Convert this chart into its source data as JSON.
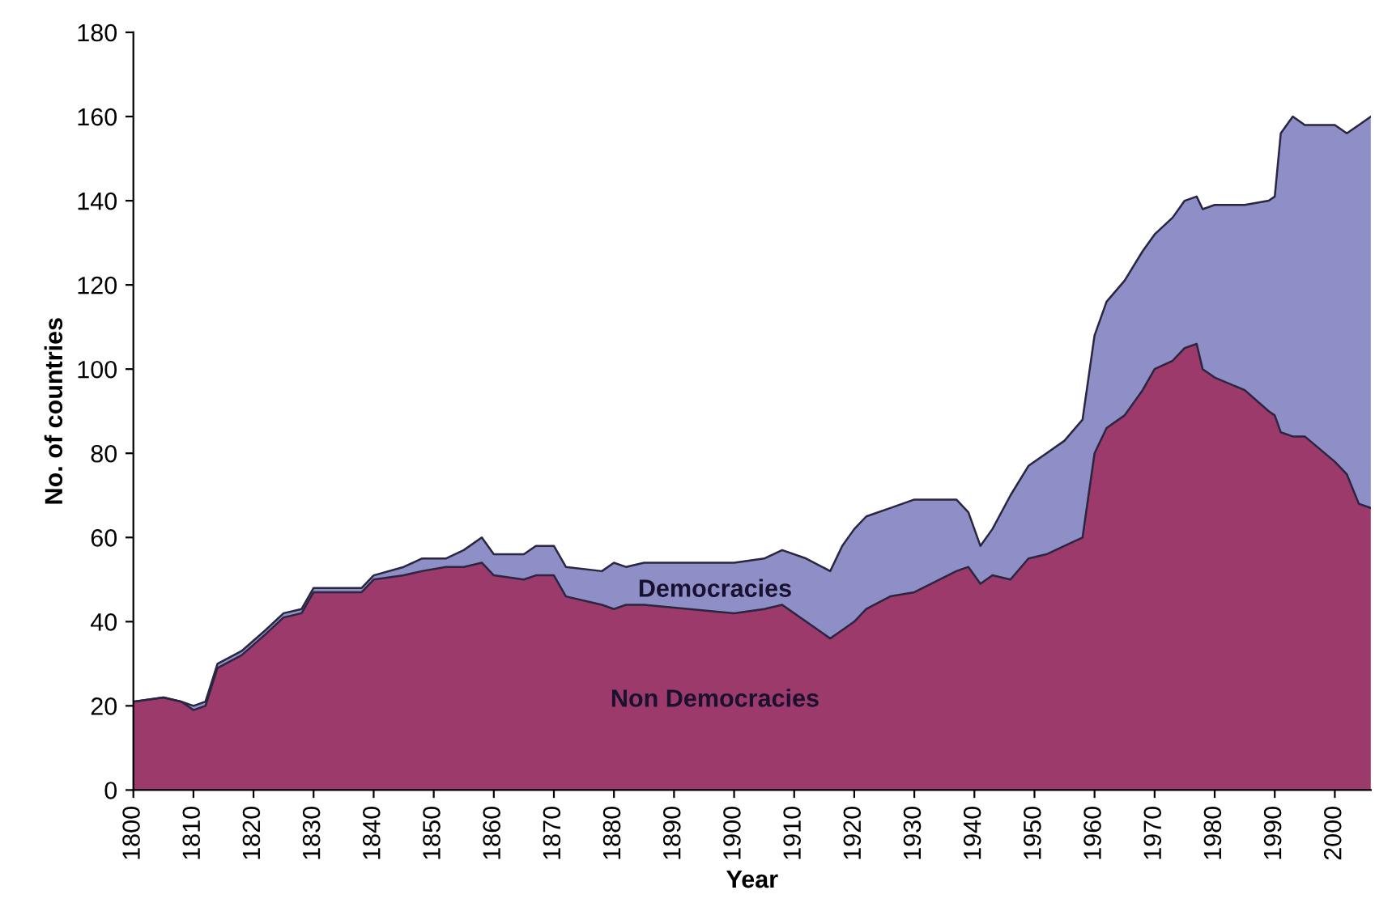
{
  "chart_data": {
    "type": "area",
    "stacked": true,
    "xlabel": "Year",
    "ylabel": "No. of countries",
    "x": [
      1800,
      1805,
      1808,
      1810,
      1812,
      1814,
      1818,
      1822,
      1825,
      1828,
      1830,
      1835,
      1838,
      1840,
      1845,
      1848,
      1852,
      1855,
      1858,
      1860,
      1865,
      1867,
      1870,
      1872,
      1878,
      1880,
      1882,
      1885,
      1900,
      1905,
      1908,
      1912,
      1916,
      1918,
      1920,
      1922,
      1926,
      1930,
      1937,
      1939,
      1941,
      1943,
      1946,
      1949,
      1952,
      1955,
      1958,
      1960,
      1962,
      1965,
      1968,
      1970,
      1973,
      1975,
      1977,
      1978,
      1980,
      1985,
      1989,
      1990,
      1991,
      1993,
      1995,
      2000,
      2002,
      2004,
      2006
    ],
    "series": [
      {
        "name": "Non Democracies",
        "color": "#9b3a6b",
        "values": [
          21,
          22,
          21,
          19,
          20,
          29,
          32,
          37,
          41,
          42,
          47,
          47,
          47,
          50,
          51,
          52,
          53,
          53,
          54,
          51,
          50,
          51,
          51,
          46,
          44,
          43,
          44,
          44,
          42,
          43,
          44,
          40,
          36,
          38,
          40,
          43,
          46,
          47,
          52,
          53,
          49,
          51,
          50,
          55,
          56,
          58,
          60,
          80,
          86,
          89,
          95,
          100,
          102,
          105,
          106,
          100,
          98,
          95,
          90,
          89,
          85,
          84,
          84,
          78,
          75,
          68,
          67
        ]
      },
      {
        "name": "Democracies",
        "color": "#8d8fc6",
        "values": [
          0,
          0,
          0,
          1,
          1,
          1,
          1,
          1,
          1,
          1,
          1,
          1,
          1,
          1,
          2,
          3,
          2,
          4,
          6,
          5,
          6,
          7,
          7,
          7,
          8,
          11,
          9,
          10,
          12,
          12,
          13,
          15,
          16,
          20,
          22,
          22,
          21,
          22,
          17,
          13,
          9,
          11,
          20,
          22,
          24,
          25,
          28,
          28,
          30,
          32,
          33,
          32,
          34,
          35,
          35,
          38,
          41,
          44,
          50,
          52,
          71,
          76,
          74,
          80,
          81,
          90,
          93
        ]
      }
    ],
    "xlim": [
      1800,
      2006
    ],
    "xticks": [
      1800,
      1810,
      1820,
      1830,
      1840,
      1850,
      1860,
      1870,
      1880,
      1890,
      1900,
      1910,
      1920,
      1930,
      1940,
      1950,
      1960,
      1970,
      1980,
      1990,
      2000
    ],
    "ylim": [
      0,
      180
    ],
    "yticks": [
      0,
      20,
      40,
      60,
      80,
      100,
      120,
      140,
      160,
      180
    ],
    "grid": false,
    "legend": false
  }
}
